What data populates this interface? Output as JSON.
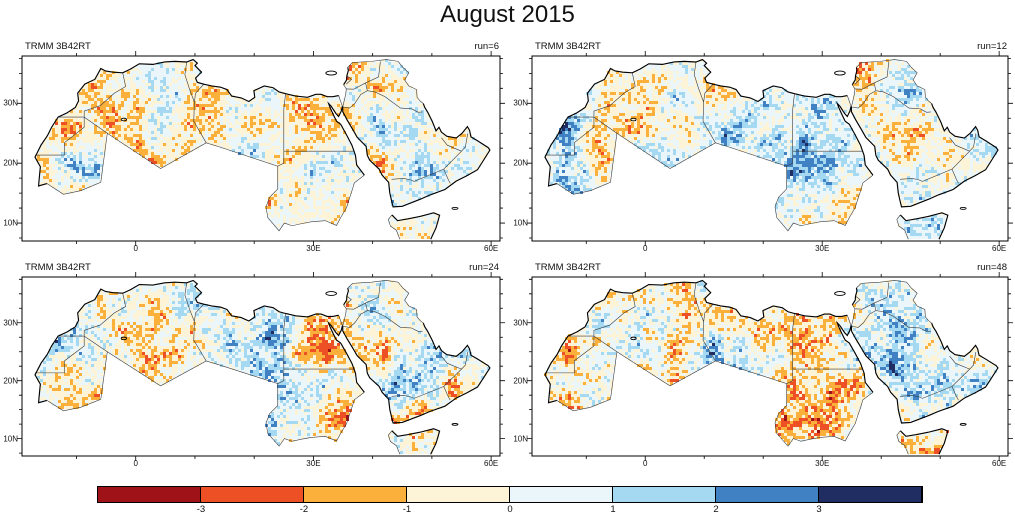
{
  "title": "August 2015",
  "panels": [
    {
      "label": "TRMM 3B42RT",
      "run": "run=6"
    },
    {
      "label": "TRMM 3B42RT",
      "run": "run=12"
    },
    {
      "label": "TRMM 3B42RT",
      "run": "run=24"
    },
    {
      "label": "TRMM 3B42RT",
      "run": "run=48"
    }
  ],
  "axes": {
    "x_ticks": [
      {
        "label": "0",
        "lon": 0
      },
      {
        "label": "30E",
        "lon": 30
      },
      {
        "label": "60E",
        "lon": 60
      }
    ],
    "y_ticks": [
      {
        "label": "30N",
        "lat": 30
      },
      {
        "label": "20N",
        "lat": 20
      },
      {
        "label": "10N",
        "lat": 10
      }
    ]
  },
  "colorbar": {
    "tick_labels": [
      "-3",
      "-2",
      "-1",
      "0",
      "1",
      "2",
      "3"
    ],
    "colors": [
      "#9f1218",
      "#ee5026",
      "#fbb03b",
      "#fdf3d7",
      "#ebf6fb",
      "#a5d9f1",
      "#3f81c3",
      "#1f2d63"
    ]
  }
}
